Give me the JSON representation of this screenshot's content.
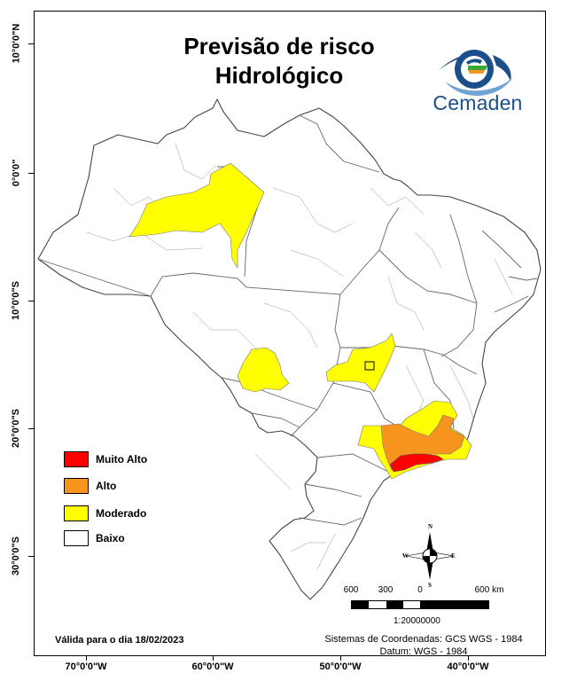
{
  "title": {
    "line1": "Previsão de risco",
    "line2": "Hidrológico"
  },
  "logo": {
    "name": "Cemaden"
  },
  "axes": {
    "lat_labels": [
      "10°0'0\"N",
      "0°0'0\"",
      "10°0'0\"S",
      "20°0'0\"S",
      "30°0'0\"S"
    ],
    "lon_labels": [
      "70°0'0\"W",
      "60°0'0\"W",
      "50°0'0\"W",
      "40°0'0\"W"
    ]
  },
  "legend": [
    {
      "label": "Muito Alto",
      "color": "#ff0000"
    },
    {
      "label": "Alto",
      "color": "#f7941d"
    },
    {
      "label": "Moderado",
      "color": "#ffff00"
    },
    {
      "label": "Baixo",
      "color": "#ffffff"
    }
  ],
  "compass": {
    "n": "N",
    "s": "S",
    "e": "E",
    "w": "W"
  },
  "scale": {
    "labels": [
      "600",
      "300",
      "0",
      "600 km"
    ],
    "ratio": "1:20000000"
  },
  "valid_date": "Válida para o dia 18/02/2023",
  "coordinate_system": {
    "line1": "Sistemas de Coordenadas: GCS WGS - 1984",
    "line2": "Datum: WGS - 1984"
  },
  "colors": {
    "border": "#555555",
    "brazil_fill": "#ffffff",
    "logo_blue": "#1b4f8a",
    "logo_green": "#3aa935",
    "logo_orange": "#f7941d"
  }
}
